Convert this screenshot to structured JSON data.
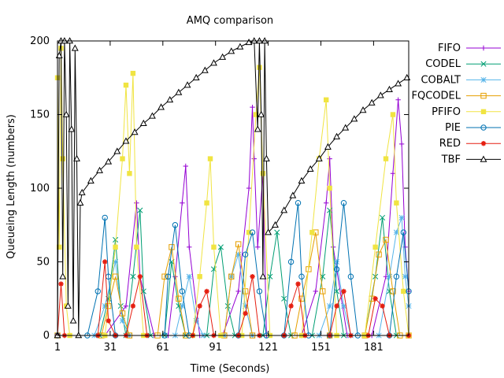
{
  "chart_data": {
    "type": "line",
    "title": "AMQ comparison",
    "xlabel": "Time (Seconds)",
    "ylabel": "Queueing Length (numbers)",
    "xlim": [
      1,
      201
    ],
    "ylim": [
      0,
      200
    ],
    "xticks": [
      1,
      31,
      61,
      91,
      121,
      151,
      181
    ],
    "yticks": [
      0,
      50,
      100,
      150,
      200
    ],
    "grid": false,
    "legend": "outside-right",
    "series": [
      {
        "name": "FIFO",
        "color": "#9400d3",
        "marker": "plus",
        "data": [
          [
            1,
            0
          ],
          [
            28,
            0
          ],
          [
            40,
            20
          ],
          [
            46,
            90
          ],
          [
            48,
            40
          ],
          [
            56,
            0
          ],
          [
            64,
            0
          ],
          [
            68,
            40
          ],
          [
            72,
            90
          ],
          [
            74,
            115
          ],
          [
            76,
            60
          ],
          [
            82,
            0
          ],
          [
            95,
            0
          ],
          [
            104,
            30
          ],
          [
            110,
            100
          ],
          [
            112,
            155
          ],
          [
            113,
            120
          ],
          [
            115,
            60
          ],
          [
            118,
            110
          ],
          [
            120,
            0
          ],
          [
            140,
            0
          ],
          [
            148,
            30
          ],
          [
            154,
            90
          ],
          [
            156,
            120
          ],
          [
            158,
            60
          ],
          [
            166,
            0
          ],
          [
            180,
            0
          ],
          [
            188,
            40
          ],
          [
            192,
            110
          ],
          [
            195,
            160
          ],
          [
            197,
            130
          ],
          [
            199,
            60
          ],
          [
            201,
            30
          ]
        ]
      },
      {
        "name": "CODEL",
        "color": "#009e73",
        "marker": "x",
        "data": [
          [
            1,
            0
          ],
          [
            25,
            0
          ],
          [
            30,
            25
          ],
          [
            34,
            65
          ],
          [
            37,
            20
          ],
          [
            40,
            0
          ],
          [
            44,
            40
          ],
          [
            48,
            85
          ],
          [
            50,
            30
          ],
          [
            54,
            0
          ],
          [
            62,
            0
          ],
          [
            66,
            50
          ],
          [
            70,
            20
          ],
          [
            74,
            0
          ],
          [
            86,
            0
          ],
          [
            90,
            45
          ],
          [
            94,
            60
          ],
          [
            98,
            20
          ],
          [
            102,
            0
          ],
          [
            118,
            0
          ],
          [
            122,
            40
          ],
          [
            126,
            70
          ],
          [
            130,
            25
          ],
          [
            134,
            0
          ],
          [
            146,
            0
          ],
          [
            152,
            40
          ],
          [
            156,
            85
          ],
          [
            160,
            30
          ],
          [
            164,
            0
          ],
          [
            176,
            0
          ],
          [
            182,
            40
          ],
          [
            186,
            80
          ],
          [
            190,
            30
          ],
          [
            194,
            0
          ],
          [
            201,
            0
          ]
        ]
      },
      {
        "name": "COBALT",
        "color": "#56b4e9",
        "marker": "star",
        "data": [
          [
            1,
            0
          ],
          [
            22,
            0
          ],
          [
            28,
            20
          ],
          [
            34,
            50
          ],
          [
            38,
            10
          ],
          [
            42,
            0
          ],
          [
            68,
            0
          ],
          [
            72,
            20
          ],
          [
            76,
            40
          ],
          [
            80,
            10
          ],
          [
            84,
            0
          ],
          [
            96,
            0
          ],
          [
            100,
            40
          ],
          [
            104,
            55
          ],
          [
            108,
            20
          ],
          [
            112,
            0
          ],
          [
            150,
            0
          ],
          [
            156,
            20
          ],
          [
            160,
            50
          ],
          [
            164,
            20
          ],
          [
            168,
            0
          ],
          [
            184,
            0
          ],
          [
            190,
            40
          ],
          [
            194,
            70
          ],
          [
            197,
            80
          ],
          [
            199,
            40
          ],
          [
            201,
            20
          ]
        ]
      },
      {
        "name": "FQCODEL",
        "color": "#e69f00",
        "marker": "square-open",
        "data": [
          [
            1,
            0
          ],
          [
            26,
            0
          ],
          [
            30,
            20
          ],
          [
            34,
            40
          ],
          [
            38,
            15
          ],
          [
            42,
            0
          ],
          [
            58,
            0
          ],
          [
            62,
            40
          ],
          [
            66,
            60
          ],
          [
            70,
            25
          ],
          [
            74,
            0
          ],
          [
            96,
            0
          ],
          [
            100,
            40
          ],
          [
            104,
            62
          ],
          [
            108,
            30
          ],
          [
            112,
            0
          ],
          [
            136,
            0
          ],
          [
            140,
            25
          ],
          [
            144,
            45
          ],
          [
            148,
            70
          ],
          [
            152,
            30
          ],
          [
            156,
            0
          ],
          [
            176,
            0
          ],
          [
            180,
            25
          ],
          [
            184,
            55
          ],
          [
            188,
            65
          ],
          [
            192,
            30
          ],
          [
            196,
            0
          ],
          [
            201,
            0
          ]
        ]
      },
      {
        "name": "PFIFO",
        "color": "#f0e442",
        "marker": "square",
        "data": [
          [
            1,
            175
          ],
          [
            2,
            60
          ],
          [
            3,
            195
          ],
          [
            4,
            120
          ],
          [
            6,
            20
          ],
          [
            8,
            0
          ],
          [
            28,
            0
          ],
          [
            34,
            60
          ],
          [
            38,
            120
          ],
          [
            40,
            170
          ],
          [
            42,
            110
          ],
          [
            44,
            178
          ],
          [
            46,
            60
          ],
          [
            50,
            0
          ],
          [
            78,
            0
          ],
          [
            82,
            40
          ],
          [
            86,
            90
          ],
          [
            88,
            120
          ],
          [
            90,
            60
          ],
          [
            94,
            0
          ],
          [
            106,
            0
          ],
          [
            110,
            70
          ],
          [
            114,
            150
          ],
          [
            116,
            182
          ],
          [
            118,
            110
          ],
          [
            122,
            0
          ],
          [
            140,
            0
          ],
          [
            146,
            70
          ],
          [
            150,
            120
          ],
          [
            154,
            160
          ],
          [
            156,
            100
          ],
          [
            160,
            0
          ],
          [
            176,
            0
          ],
          [
            182,
            60
          ],
          [
            188,
            120
          ],
          [
            192,
            150
          ],
          [
            194,
            90
          ],
          [
            198,
            30
          ],
          [
            201,
            0
          ]
        ]
      },
      {
        "name": "PIE",
        "color": "#0072b2",
        "marker": "circle-open",
        "data": [
          [
            1,
            0
          ],
          [
            18,
            0
          ],
          [
            24,
            30
          ],
          [
            28,
            80
          ],
          [
            30,
            40
          ],
          [
            34,
            0
          ],
          [
            62,
            0
          ],
          [
            64,
            40
          ],
          [
            68,
            75
          ],
          [
            72,
            30
          ],
          [
            76,
            0
          ],
          [
            104,
            0
          ],
          [
            108,
            55
          ],
          [
            112,
            70
          ],
          [
            116,
            30
          ],
          [
            120,
            0
          ],
          [
            130,
            0
          ],
          [
            134,
            50
          ],
          [
            138,
            90
          ],
          [
            140,
            40
          ],
          [
            144,
            0
          ],
          [
            156,
            0
          ],
          [
            160,
            45
          ],
          [
            164,
            90
          ],
          [
            168,
            40
          ],
          [
            172,
            0
          ],
          [
            190,
            0
          ],
          [
            194,
            40
          ],
          [
            198,
            70
          ],
          [
            201,
            30
          ]
        ]
      },
      {
        "name": "RED",
        "color": "#e51e10",
        "marker": "asterisk",
        "data": [
          [
            1,
            0
          ],
          [
            3,
            35
          ],
          [
            5,
            0
          ],
          [
            24,
            0
          ],
          [
            28,
            50
          ],
          [
            30,
            10
          ],
          [
            34,
            0
          ],
          [
            40,
            0
          ],
          [
            44,
            20
          ],
          [
            48,
            40
          ],
          [
            52,
            0
          ],
          [
            78,
            0
          ],
          [
            82,
            20
          ],
          [
            86,
            30
          ],
          [
            90,
            0
          ],
          [
            104,
            0
          ],
          [
            108,
            15
          ],
          [
            112,
            40
          ],
          [
            116,
            0
          ],
          [
            130,
            0
          ],
          [
            134,
            20
          ],
          [
            138,
            35
          ],
          [
            142,
            0
          ],
          [
            156,
            0
          ],
          [
            160,
            20
          ],
          [
            164,
            30
          ],
          [
            168,
            0
          ],
          [
            178,
            0
          ],
          [
            182,
            25
          ],
          [
            186,
            20
          ],
          [
            190,
            0
          ],
          [
            201,
            0
          ]
        ]
      },
      {
        "name": "TBF",
        "color": "#000000",
        "marker": "triangle-open",
        "data": [
          [
            1,
            0
          ],
          [
            2,
            190
          ],
          [
            3,
            200
          ],
          [
            4,
            40
          ],
          [
            5,
            200
          ],
          [
            6,
            150
          ],
          [
            7,
            20
          ],
          [
            8,
            200
          ],
          [
            9,
            140
          ],
          [
            10,
            10
          ],
          [
            11,
            195
          ],
          [
            12,
            120
          ],
          [
            13,
            0
          ],
          [
            14,
            90
          ],
          [
            15,
            97
          ],
          [
            20,
            105
          ],
          [
            25,
            112
          ],
          [
            30,
            118
          ],
          [
            35,
            125
          ],
          [
            40,
            132
          ],
          [
            45,
            138
          ],
          [
            50,
            144
          ],
          [
            55,
            149
          ],
          [
            60,
            155
          ],
          [
            65,
            160
          ],
          [
            70,
            165
          ],
          [
            75,
            170
          ],
          [
            80,
            175
          ],
          [
            85,
            180
          ],
          [
            90,
            185
          ],
          [
            95,
            189
          ],
          [
            100,
            193
          ],
          [
            105,
            196
          ],
          [
            110,
            199
          ],
          [
            113,
            200
          ],
          [
            115,
            140
          ],
          [
            116,
            200
          ],
          [
            117,
            150
          ],
          [
            118,
            40
          ],
          [
            119,
            200
          ],
          [
            120,
            120
          ],
          [
            121,
            70
          ],
          [
            125,
            75
          ],
          [
            130,
            85
          ],
          [
            135,
            95
          ],
          [
            140,
            105
          ],
          [
            145,
            113
          ],
          [
            150,
            120
          ],
          [
            155,
            128
          ],
          [
            160,
            135
          ],
          [
            165,
            141
          ],
          [
            170,
            147
          ],
          [
            175,
            153
          ],
          [
            180,
            158
          ],
          [
            185,
            163
          ],
          [
            190,
            167
          ],
          [
            195,
            171
          ],
          [
            200,
            175
          ]
        ]
      }
    ]
  }
}
